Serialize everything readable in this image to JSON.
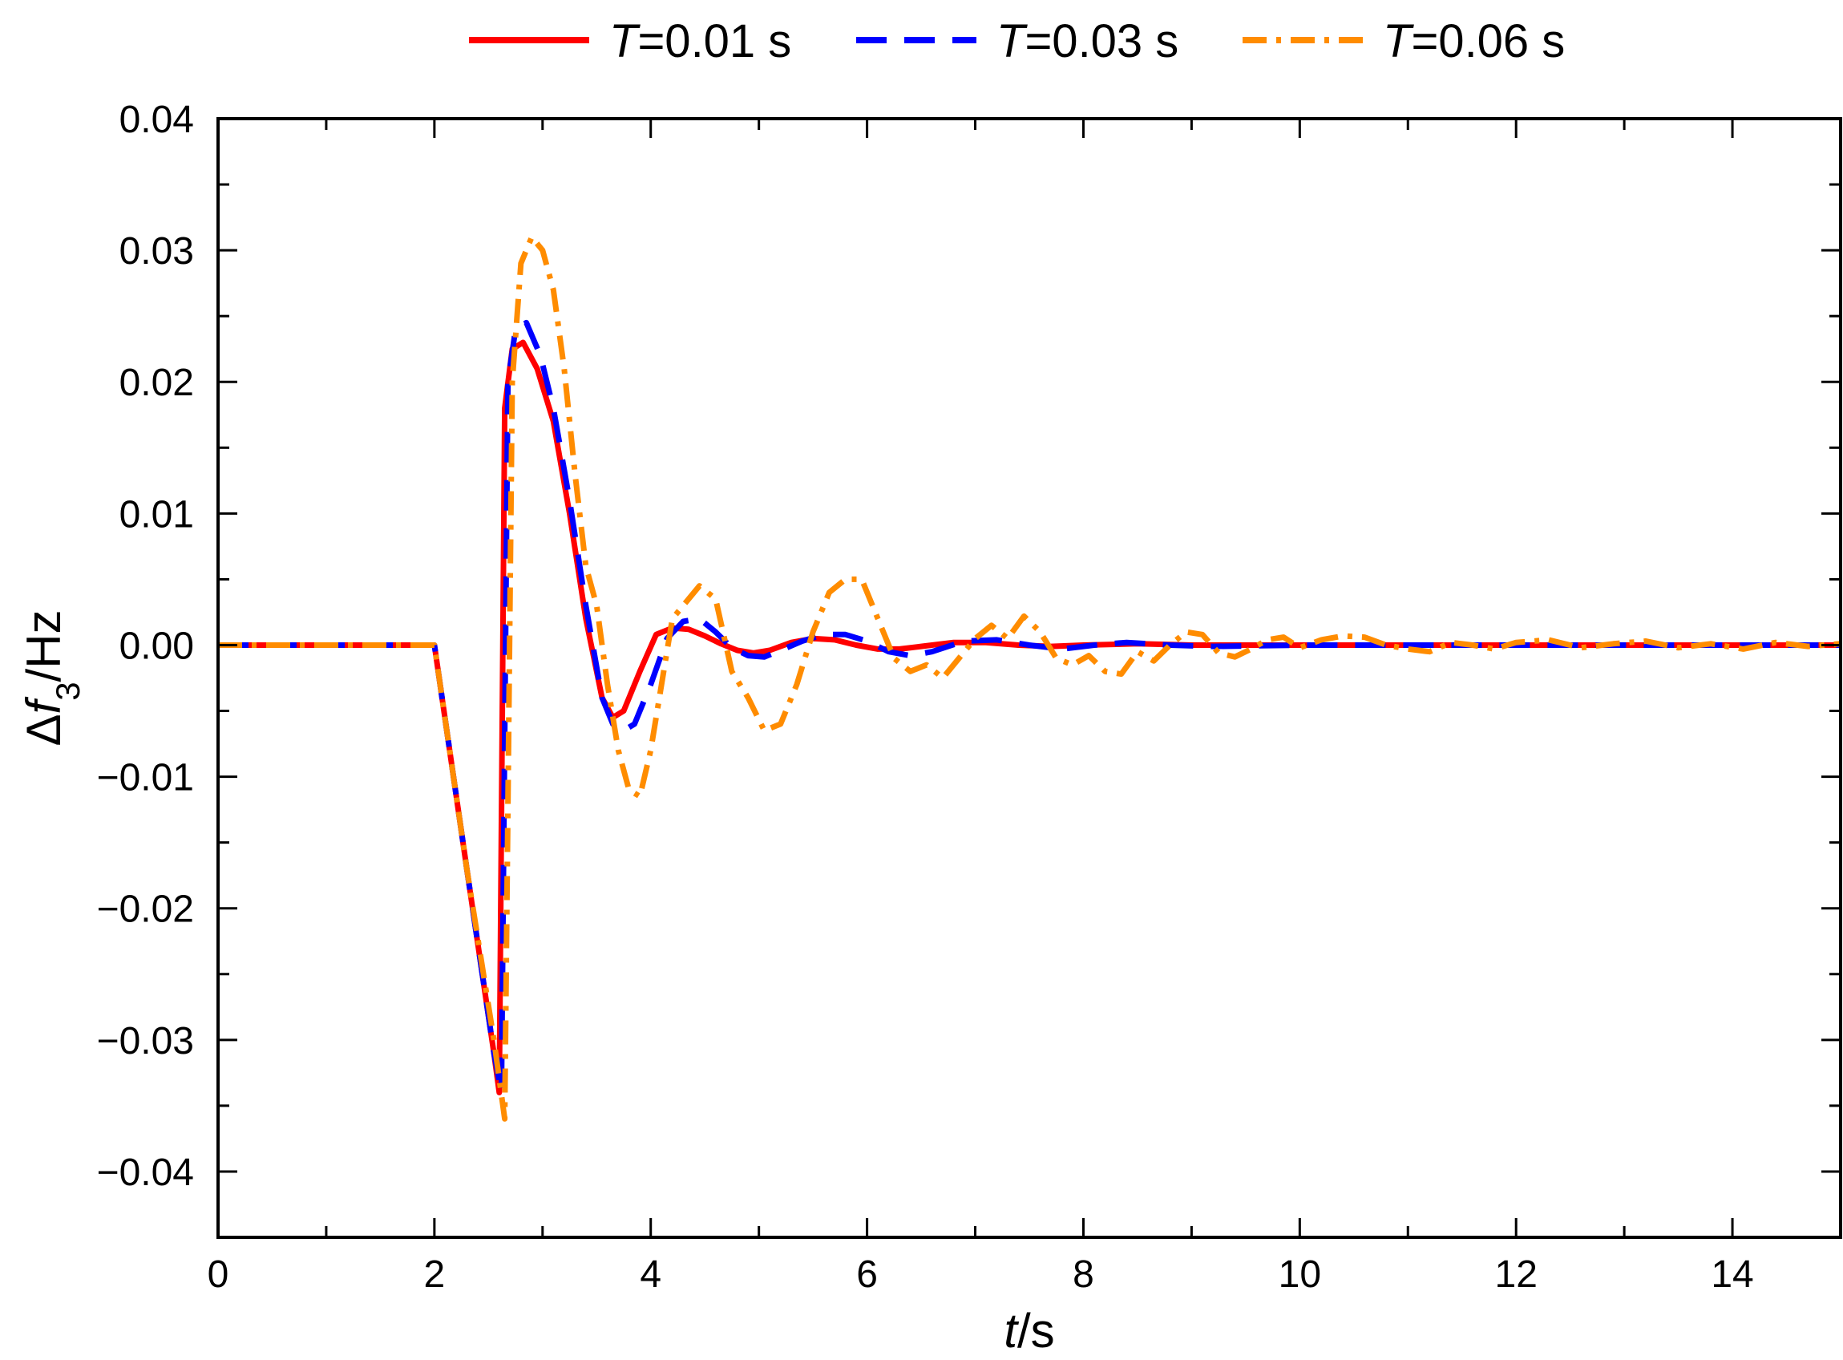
{
  "chart_data": {
    "type": "line",
    "title": "",
    "xlabel": {
      "var": "t",
      "unit": "/s"
    },
    "ylabel": {
      "prefix": "Δ",
      "var": "f",
      "sub": "3",
      "unit": "/Hz"
    },
    "xlim": [
      0,
      15
    ],
    "ylim": [
      -0.045,
      0.04
    ],
    "x_ticks": [
      0,
      2,
      4,
      6,
      8,
      10,
      12,
      14
    ],
    "x_tick_labels": [
      "0",
      "2",
      "4",
      "6",
      "8",
      "10",
      "12",
      "14"
    ],
    "y_ticks": [
      -0.04,
      -0.03,
      -0.02,
      -0.01,
      0.0,
      0.01,
      0.02,
      0.03,
      0.04
    ],
    "y_tick_labels": [
      "−0.04",
      "−0.03",
      "−0.02",
      "−0.01",
      "0.00",
      "0.01",
      "0.02",
      "0.03",
      "0.04"
    ],
    "grid": false,
    "legend_position": "top-outside",
    "series": [
      {
        "legend_var": "T",
        "legend_rest": "=0.01 s",
        "color": "#ff0000",
        "style": "solid",
        "x": [
          0,
          2.0,
          2.3,
          2.55,
          2.6,
          2.65,
          2.72,
          2.82,
          2.95,
          3.1,
          3.25,
          3.4,
          3.55,
          3.65,
          3.75,
          3.9,
          4.05,
          4.2,
          4.35,
          4.5,
          4.65,
          4.8,
          4.95,
          5.1,
          5.3,
          5.5,
          5.7,
          5.9,
          6.1,
          6.3,
          6.5,
          6.8,
          7.1,
          7.4,
          7.7,
          8.0,
          8.5,
          9.0,
          10,
          11,
          12,
          13,
          14,
          15
        ],
        "y": [
          0,
          0,
          -0.017,
          -0.031,
          -0.034,
          0.018,
          0.0225,
          0.023,
          0.021,
          0.017,
          0.01,
          0.002,
          -0.004,
          -0.0055,
          -0.005,
          -0.002,
          0.0008,
          0.0013,
          0.0012,
          0.0007,
          0.0001,
          -0.0004,
          -0.0006,
          -0.0004,
          0.0002,
          0.0005,
          0.0004,
          0.0,
          -0.0003,
          -0.0003,
          -0.0001,
          0.0002,
          0.0002,
          0.0,
          -0.0001,
          0.0,
          0.0001,
          0.0,
          0,
          0,
          0,
          0,
          0,
          0
        ]
      },
      {
        "legend_var": "T",
        "legend_rest": "=0.03 s",
        "color": "#0000ff",
        "style": "dashed",
        "x": [
          0,
          2.0,
          2.3,
          2.55,
          2.62,
          2.68,
          2.75,
          2.85,
          2.98,
          3.1,
          3.25,
          3.4,
          3.55,
          3.65,
          3.75,
          3.85,
          4.0,
          4.15,
          4.3,
          4.45,
          4.6,
          4.75,
          4.9,
          5.05,
          5.2,
          5.4,
          5.6,
          5.8,
          6.0,
          6.2,
          6.4,
          6.6,
          6.9,
          7.2,
          7.5,
          7.8,
          8.1,
          8.4,
          8.8,
          9.2,
          10,
          11,
          12,
          13,
          14,
          15
        ],
        "y": [
          0,
          0,
          -0.017,
          -0.031,
          -0.034,
          0.02,
          0.024,
          0.0245,
          0.022,
          0.018,
          0.011,
          0.003,
          -0.004,
          -0.006,
          -0.0065,
          -0.006,
          -0.003,
          0.0005,
          0.0018,
          0.002,
          0.001,
          -0.0002,
          -0.0008,
          -0.0009,
          -0.0004,
          0.0003,
          0.0008,
          0.0008,
          0.0003,
          -0.0005,
          -0.0008,
          -0.0005,
          0.0003,
          0.0004,
          0.0,
          -0.0003,
          0.0,
          0.0002,
          0.0,
          -0.0001,
          0,
          0,
          0,
          0,
          0,
          0
        ]
      },
      {
        "legend_var": "T",
        "legend_rest": "=0.06 s",
        "color": "#ff8c00",
        "style": "dashdot",
        "x": [
          0,
          2.0,
          2.3,
          2.55,
          2.65,
          2.72,
          2.8,
          2.9,
          3.0,
          3.1,
          3.2,
          3.3,
          3.4,
          3.5,
          3.6,
          3.7,
          3.8,
          3.9,
          4.0,
          4.1,
          4.2,
          4.3,
          4.45,
          4.6,
          4.75,
          4.9,
          5.05,
          5.2,
          5.35,
          5.5,
          5.65,
          5.8,
          5.95,
          6.1,
          6.25,
          6.4,
          6.55,
          6.7,
          6.85,
          7.0,
          7.15,
          7.3,
          7.45,
          7.6,
          7.75,
          7.9,
          8.05,
          8.2,
          8.35,
          8.5,
          8.65,
          8.8,
          8.95,
          9.1,
          9.25,
          9.4,
          9.55,
          9.7,
          9.85,
          10.0,
          10.2,
          10.4,
          10.6,
          10.8,
          11.0,
          11.2,
          11.4,
          11.6,
          11.8,
          12.0,
          12.3,
          12.6,
          12.9,
          13.2,
          13.5,
          13.8,
          14.1,
          14.4,
          14.7,
          15.0
        ],
        "y": [
          0,
          0,
          -0.017,
          -0.03,
          -0.036,
          0.02,
          0.029,
          0.031,
          0.03,
          0.027,
          0.021,
          0.013,
          0.006,
          0.003,
          -0.003,
          -0.008,
          -0.011,
          -0.0115,
          -0.008,
          -0.003,
          0.002,
          0.003,
          0.0045,
          0.0035,
          -0.002,
          -0.004,
          -0.0065,
          -0.006,
          -0.003,
          0.001,
          0.004,
          0.005,
          0.005,
          0.002,
          -0.001,
          -0.002,
          -0.0015,
          -0.0025,
          -0.001,
          0.0005,
          0.0015,
          0.0005,
          0.0022,
          0.001,
          -0.001,
          -0.0015,
          -0.0008,
          -0.002,
          -0.0022,
          -0.0005,
          -0.0012,
          0.0,
          0.001,
          0.0008,
          -0.0006,
          -0.0009,
          -0.0003,
          0.0004,
          0.0006,
          -0.0002,
          0.0004,
          0.0007,
          0.0006,
          0.0,
          -0.0003,
          -0.0005,
          0.0002,
          0.0,
          -0.0003,
          0.0002,
          0.0004,
          -0.0002,
          0.0001,
          0.0003,
          -0.0002,
          0.0001,
          -0.0003,
          0.0002,
          -0.0001,
          0.0001
        ]
      }
    ]
  }
}
